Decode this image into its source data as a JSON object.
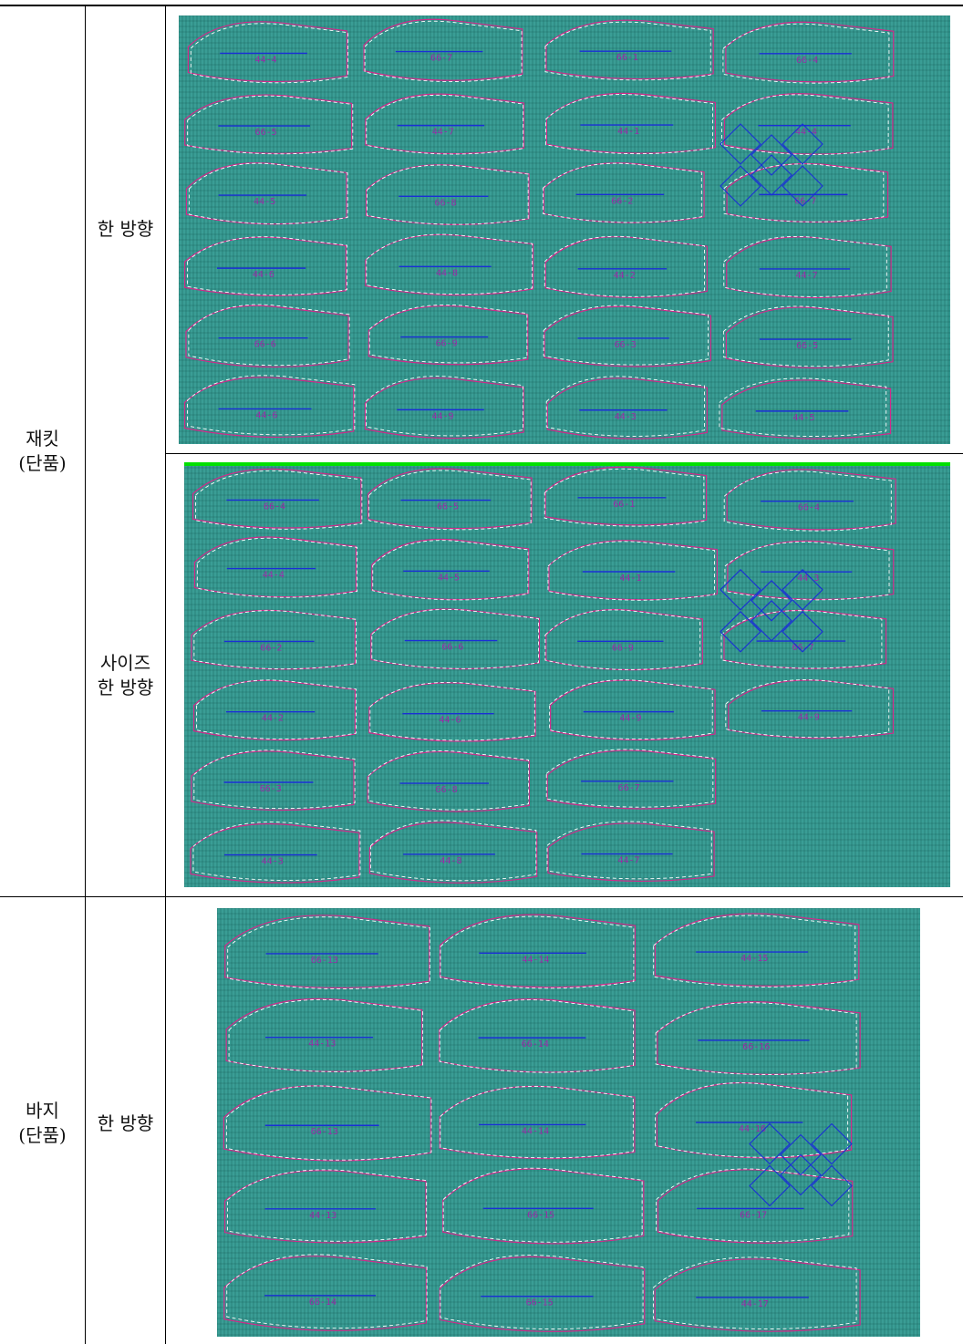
{
  "table": {
    "rows": [
      {
        "category": "재킷\n(단품)",
        "methods": [
          {
            "label": "한 방향",
            "marker": {
              "pieces": [
                "44-4",
                "66-5",
                "44-5",
                "44-6",
                "66-6",
                "44-6",
                "66-7",
                "44-7",
                "66-8",
                "44-8",
                "66-9",
                "44-9",
                "66-1",
                "44-1",
                "66-2",
                "44-2",
                "66-3",
                "44-3",
                "66-4",
                "44-4",
                "66-7",
                "44-7",
                "66-5",
                "44-5"
              ]
            }
          },
          {
            "label": "사이즈\n한 방향",
            "marker": {
              "pieces": [
                "66-4",
                "44-4",
                "66-2",
                "44-2",
                "66-3",
                "44-3",
                "66-5",
                "44-5",
                "66-6",
                "44-6",
                "66-8",
                "44-8",
                "66-1",
                "44-1",
                "66-9",
                "44-9",
                "66-7",
                "44-7",
                "66-4",
                "44-3",
                "66-7",
                "44-9"
              ]
            }
          }
        ]
      },
      {
        "category": "바지\n(단품)",
        "methods": [
          {
            "label": "한 방향",
            "marker": {
              "pieces": [
                "66-13",
                "44-13",
                "66-13",
                "44-13",
                "66-14",
                "44-14",
                "66-14",
                "44-14",
                "66-15",
                "66-15",
                "44-15",
                "66-16",
                "44-16",
                "66-17",
                "44-17"
              ]
            }
          }
        ]
      }
    ]
  },
  "colors": {
    "grid_fill": "#3a9d95",
    "grid_line": "#0d4f49",
    "outline": "#d02a8a",
    "grainline": "#1a2fd6",
    "seam": "#ffffff",
    "label": "#9a2aa8",
    "edge": "#00e000"
  }
}
